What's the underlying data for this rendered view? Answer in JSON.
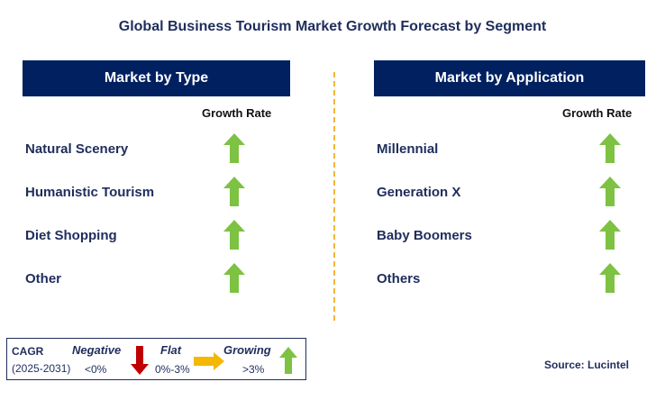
{
  "title": "Global Business Tourism Market Growth Forecast by Segment",
  "left": {
    "header": "Market by Type",
    "growth_label": "Growth Rate",
    "items": [
      {
        "label": "Natural Scenery",
        "trend": "growing"
      },
      {
        "label": "Humanistic Tourism",
        "trend": "growing"
      },
      {
        "label": "Diet Shopping",
        "trend": "growing"
      },
      {
        "label": "Other",
        "trend": "growing"
      }
    ]
  },
  "right": {
    "header": "Market by Application",
    "growth_label": "Growth Rate",
    "items": [
      {
        "label": "Millennial",
        "trend": "growing"
      },
      {
        "label": "Generation X",
        "trend": "growing"
      },
      {
        "label": "Baby Boomers",
        "trend": "growing"
      },
      {
        "label": "Others",
        "trend": "growing"
      }
    ]
  },
  "legend": {
    "cagr": "CAGR",
    "period": "(2025-2031)",
    "negative": {
      "title": "Negative",
      "range": "<0%",
      "icon": "down-arrow-icon"
    },
    "flat": {
      "title": "Flat",
      "range": "0%-3%",
      "icon": "right-arrow-icon"
    },
    "growing": {
      "title": "Growing",
      "range": ">3%",
      "icon": "up-arrow-icon"
    }
  },
  "source": "Source: Lucintel",
  "colors": {
    "header_bg": "#002060",
    "text": "#1f2d5c",
    "growing": "#7dc242",
    "negative": "#c00000",
    "flat": "#f5b800",
    "divider": "#f2b53a"
  }
}
